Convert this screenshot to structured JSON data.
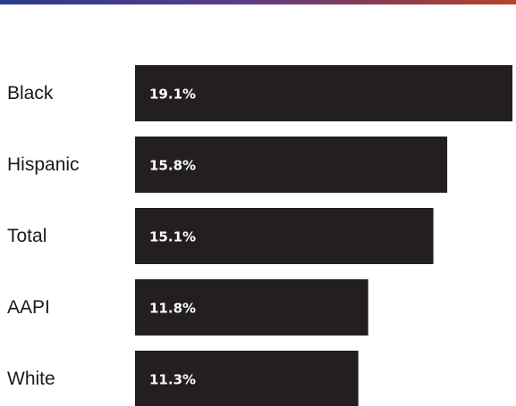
{
  "colors": {
    "bar": "#231f20",
    "label_text": "#1a1a1a",
    "value_text": "#ffffff",
    "top_rule_start": "#2a3a8c",
    "top_rule_end": "#b5452a"
  },
  "chart_data": {
    "type": "bar",
    "orientation": "horizontal",
    "categories": [
      "Black",
      "Hispanic",
      "Total",
      "AAPI",
      "White"
    ],
    "values": [
      19.1,
      15.8,
      15.1,
      11.8,
      11.3
    ],
    "value_labels": [
      "19.1%",
      "15.8%",
      "15.1%",
      "11.8%",
      "11.3%"
    ],
    "unit": "%",
    "title": "",
    "xlabel": "",
    "ylabel": "",
    "xlim": [
      0,
      19.1
    ],
    "grid": false,
    "legend": "none"
  }
}
